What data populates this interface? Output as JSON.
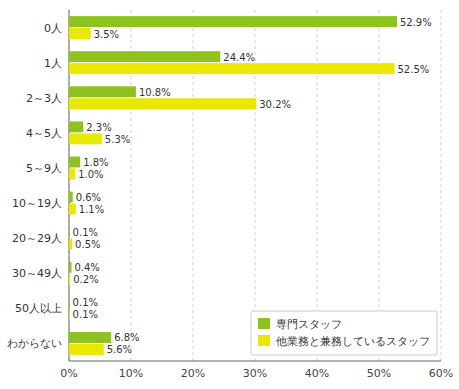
{
  "chart_data": {
    "type": "bar",
    "orientation": "horizontal",
    "categories": [
      "0人",
      "1人",
      "2～3人",
      "4～5人",
      "5～9人",
      "10～19人",
      "20～29人",
      "30～49人",
      "50人以上",
      "わからない"
    ],
    "series": [
      {
        "name": "専門スタッフ",
        "color": "#8dc21f",
        "values": [
          52.9,
          24.4,
          10.8,
          2.3,
          1.8,
          0.6,
          0.1,
          0.4,
          0.1,
          6.8
        ],
        "value_labels": [
          "52.9%",
          "24.4%",
          "10.8%",
          "2.3%",
          "1.8%",
          "0.6%",
          "0.1%",
          "0.4%",
          "0.1%",
          "6.8%"
        ]
      },
      {
        "name": "他業務と兼務しているスタッフ",
        "color": "#e8e800",
        "values": [
          3.5,
          52.5,
          30.2,
          5.3,
          1.0,
          1.1,
          0.5,
          0.2,
          0.1,
          5.6
        ],
        "value_labels": [
          "3.5%",
          "52.5%",
          "30.2%",
          "5.3%",
          "1.0%",
          "1.1%",
          "0.5%",
          "0.2%",
          "0.1%",
          "5.6%"
        ]
      }
    ],
    "xlim": [
      0,
      60
    ],
    "xticks": [
      {
        "value": 0,
        "label": "0%"
      },
      {
        "value": 10,
        "label": "10%"
      },
      {
        "value": 20,
        "label": "20%"
      },
      {
        "value": 30,
        "label": "30%"
      },
      {
        "value": 40,
        "label": "40%"
      },
      {
        "value": 50,
        "label": "50%"
      },
      {
        "value": 60,
        "label": "60%"
      }
    ],
    "grid": true,
    "legend": "lower right",
    "data_labels": true
  }
}
